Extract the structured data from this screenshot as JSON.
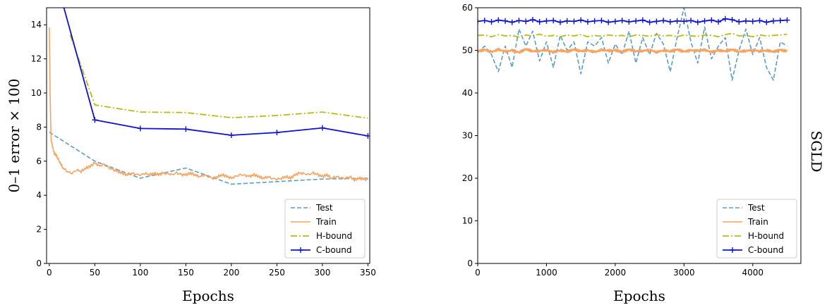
{
  "side_label": "SGLD",
  "legend_labels": [
    "Test",
    "Train",
    "H-bound",
    "C-bound"
  ],
  "colors": {
    "test": "#5b9cc6",
    "train": "#f7a462",
    "hbound": "#b5bd16",
    "cbound": "#0d12d6"
  },
  "chart_data": [
    {
      "type": "line",
      "xlabel": "Epochs",
      "ylabel": "0–1 error × 100",
      "xlim": [
        -3,
        352
      ],
      "ylim": [
        0,
        15
      ],
      "xticks": [
        "0",
        "50",
        "100",
        "150",
        "200",
        "250",
        "300",
        "350"
      ],
      "yticks": [
        "0",
        "2",
        "4",
        "6",
        "8",
        "10",
        "12",
        "14"
      ],
      "grid": false,
      "legend_position": "lower-right",
      "series": [
        {
          "name": "Test",
          "style": "dashed",
          "x": [
            0,
            50,
            100,
            150,
            200,
            250,
            300,
            350
          ],
          "y": [
            7.7,
            6.0,
            5.0,
            5.6,
            4.65,
            4.8,
            4.95,
            5.0
          ]
        },
        {
          "name": "Train",
          "style": "solid-noisy",
          "x": [
            0,
            1,
            2,
            3,
            5,
            8,
            12,
            15,
            20,
            25,
            30,
            35,
            40,
            45,
            50,
            55,
            60,
            65,
            70,
            75,
            80,
            85,
            90,
            95,
            100,
            105,
            110,
            115,
            120,
            125,
            130,
            135,
            140,
            145,
            150,
            155,
            160,
            165,
            170,
            175,
            180,
            185,
            190,
            195,
            200,
            205,
            210,
            215,
            220,
            225,
            230,
            235,
            240,
            245,
            250,
            255,
            260,
            265,
            270,
            275,
            280,
            285,
            290,
            295,
            300,
            305,
            310,
            315,
            320,
            325,
            330,
            335,
            340,
            345,
            350
          ],
          "y": [
            13.85,
            9.5,
            7.2,
            7.0,
            6.5,
            6.3,
            5.9,
            5.6,
            5.4,
            5.3,
            5.5,
            5.4,
            5.6,
            5.7,
            5.9,
            5.7,
            5.8,
            5.6,
            5.5,
            5.4,
            5.3,
            5.2,
            5.3,
            5.25,
            5.2,
            5.3,
            5.2,
            5.3,
            5.2,
            5.3,
            5.25,
            5.2,
            5.3,
            5.2,
            5.2,
            5.3,
            5.2,
            5.1,
            5.2,
            5.1,
            5.0,
            5.1,
            5.2,
            5.1,
            5.0,
            5.1,
            5.2,
            5.15,
            5.1,
            5.2,
            5.1,
            5.0,
            5.1,
            5.0,
            4.95,
            5.0,
            5.1,
            5.0,
            5.2,
            5.3,
            5.25,
            5.2,
            5.3,
            5.2,
            5.1,
            5.2,
            5.0,
            5.1,
            5.05,
            5.0,
            5.1,
            4.9,
            5.0,
            4.95,
            4.9
          ]
        },
        {
          "name": "H-bound",
          "style": "dash-dot",
          "x": [
            23,
            50,
            100,
            150,
            200,
            250,
            300,
            350
          ],
          "y": [
            13.4,
            9.3,
            8.88,
            8.85,
            8.55,
            8.68,
            8.88,
            8.52
          ]
        },
        {
          "name": "C-bound",
          "style": "solid-plus",
          "x": [
            15,
            50,
            100,
            150,
            200,
            250,
            300,
            350
          ],
          "y": [
            15.2,
            8.42,
            7.92,
            7.88,
            7.52,
            7.68,
            7.95,
            7.48
          ]
        }
      ]
    },
    {
      "type": "line",
      "xlabel": "Epochs",
      "ylabel": "",
      "xlim": [
        0,
        4700
      ],
      "ylim": [
        0,
        60
      ],
      "xticks": [
        "0",
        "1000",
        "2000",
        "3000",
        "4000"
      ],
      "yticks": [
        "0",
        "10",
        "20",
        "30",
        "40",
        "50",
        "60"
      ],
      "grid": false,
      "legend_position": "lower-right",
      "series": [
        {
          "name": "Test",
          "style": "dashed",
          "x": [
            0,
            100,
            200,
            300,
            400,
            500,
            600,
            700,
            800,
            900,
            1000,
            1100,
            1200,
            1300,
            1400,
            1500,
            1600,
            1700,
            1800,
            1900,
            2000,
            2100,
            2200,
            2300,
            2400,
            2500,
            2600,
            2700,
            2800,
            2900,
            3000,
            3100,
            3200,
            3300,
            3400,
            3500,
            3600,
            3700,
            3800,
            3900,
            4000,
            4100,
            4200,
            4300,
            4400,
            4500
          ],
          "y": [
            49.5,
            51,
            49,
            45,
            51,
            46,
            55,
            51,
            54.5,
            47.5,
            52,
            46,
            53.5,
            50,
            52,
            44.5,
            52,
            51,
            53,
            47,
            51.5,
            49,
            54.5,
            47,
            53,
            49,
            54,
            51.5,
            45,
            53,
            60,
            52,
            47,
            55.5,
            48,
            51,
            53,
            43,
            50,
            55,
            49,
            53,
            46,
            43,
            52,
            51
          ]
        },
        {
          "name": "Train",
          "style": "solid-noisy",
          "x": [
            0,
            100,
            200,
            300,
            400,
            500,
            600,
            700,
            800,
            900,
            1000,
            1100,
            1200,
            1300,
            1400,
            1500,
            1600,
            1700,
            1800,
            1900,
            2000,
            2100,
            2200,
            2300,
            2400,
            2500,
            2600,
            2700,
            2800,
            2900,
            3000,
            3100,
            3200,
            3300,
            3400,
            3500,
            3600,
            3700,
            3800,
            3900,
            4000,
            4100,
            4200,
            4300,
            4400,
            4500
          ],
          "y": [
            49.8,
            50.1,
            49.6,
            50.2,
            49.7,
            50.0,
            49.5,
            50.3,
            49.8,
            49.9,
            50.1,
            49.6,
            50.0,
            49.7,
            50.2,
            49.8,
            50.0,
            49.6,
            50.1,
            49.9,
            50.0,
            49.7,
            50.2,
            49.8,
            49.9,
            50.1,
            49.6,
            50.0,
            49.8,
            50.2,
            49.7,
            50.0,
            49.9,
            50.1,
            49.6,
            50.0,
            49.8,
            50.2,
            49.7,
            49.9,
            50.1,
            49.8,
            50.0,
            49.7,
            50.1,
            49.8
          ]
        },
        {
          "name": "H-bound",
          "style": "dash-dot",
          "x": [
            0,
            100,
            200,
            300,
            400,
            500,
            600,
            700,
            800,
            900,
            1000,
            1100,
            1200,
            1300,
            1400,
            1500,
            1600,
            1700,
            1800,
            1900,
            2000,
            2100,
            2200,
            2300,
            2400,
            2500,
            2600,
            2700,
            2800,
            2900,
            3000,
            3100,
            3200,
            3300,
            3400,
            3500,
            3600,
            3700,
            3800,
            3900,
            4000,
            4100,
            4200,
            4300,
            4400,
            4500
          ],
          "y": [
            53.5,
            53.6,
            53.2,
            53.7,
            53.4,
            53.5,
            53.1,
            53.6,
            53.4,
            53.8,
            53.3,
            53.5,
            53.2,
            53.6,
            53.4,
            53.7,
            53.2,
            53.5,
            53.3,
            53.6,
            53.4,
            53.5,
            53.2,
            53.6,
            53.5,
            53.3,
            53.7,
            53.4,
            53.5,
            53.2,
            53.6,
            53.4,
            53.3,
            53.6,
            53.5,
            53.2,
            53.7,
            54.0,
            53.4,
            53.5,
            53.2,
            53.6,
            53.4,
            53.5,
            53.6,
            53.8
          ]
        },
        {
          "name": "C-bound",
          "style": "solid-plus",
          "x": [
            0,
            100,
            200,
            300,
            400,
            500,
            600,
            700,
            800,
            900,
            1000,
            1100,
            1200,
            1300,
            1400,
            1500,
            1600,
            1700,
            1800,
            1900,
            2000,
            2100,
            2200,
            2300,
            2400,
            2500,
            2600,
            2700,
            2800,
            2900,
            3000,
            3100,
            3200,
            3300,
            3400,
            3500,
            3600,
            3700,
            3800,
            3900,
            4000,
            4100,
            4200,
            4300,
            4400,
            4500
          ],
          "y": [
            56.8,
            57.0,
            56.7,
            57.1,
            56.9,
            56.6,
            57.0,
            56.8,
            57.2,
            56.7,
            56.9,
            57.0,
            56.6,
            56.9,
            56.8,
            57.1,
            56.7,
            56.9,
            57.0,
            56.6,
            56.8,
            57.0,
            56.7,
            56.9,
            57.1,
            56.6,
            56.8,
            57.0,
            56.7,
            56.9,
            56.8,
            57.0,
            56.6,
            56.9,
            57.1,
            56.7,
            57.4,
            57.2,
            56.7,
            56.9,
            56.8,
            57.0,
            56.6,
            56.9,
            57.0,
            57.1
          ]
        }
      ]
    }
  ]
}
